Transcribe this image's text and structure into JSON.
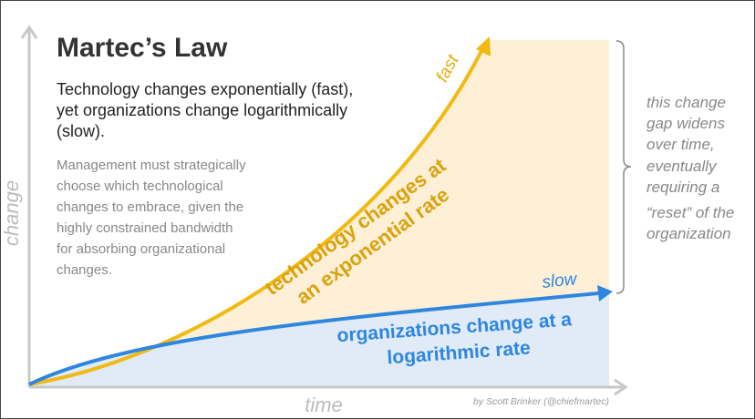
{
  "title": "Martec’s Law",
  "subtitle": {
    "lines": [
      "Technology changes exponentially (fast),",
      "yet organizations change logarithmically",
      "(slow)."
    ]
  },
  "body": {
    "lines": [
      "Management must strategically",
      "choose which technological",
      "changes to embrace, given the",
      "highly constrained bandwidth",
      "for absorbing organizational",
      "changes."
    ]
  },
  "axes": {
    "y_label": "change",
    "x_label": "time"
  },
  "curves": {
    "technology": {
      "end_label": "fast",
      "lines": [
        "technology changes at",
        "an exponential rate"
      ]
    },
    "organizations": {
      "end_label": "slow",
      "lines": [
        "organizations change at a",
        "logarithmic rate"
      ]
    }
  },
  "gap_note": {
    "lines": [
      "this change",
      "gap widens",
      "over time,",
      "eventually",
      "requiring a",
      "“reset” of the",
      "organization"
    ]
  },
  "credit": "by Scott Brinker (@chiefmartec)"
}
